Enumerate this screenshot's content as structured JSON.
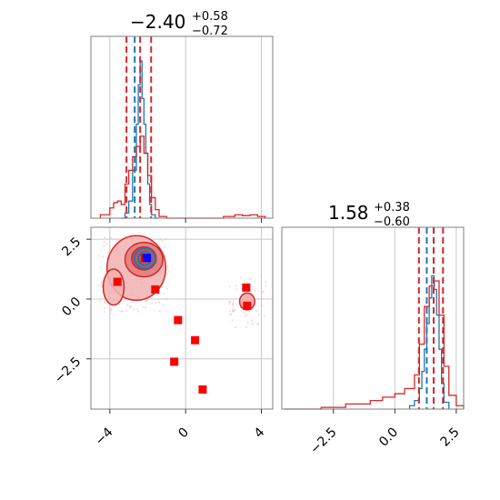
{
  "colors": {
    "blue": "#1f77b4",
    "red": "#d62728",
    "marker": "#ff0000",
    "truth": "#0000ff",
    "grid": "#c8c8c8",
    "frame": "#7f7f7f"
  },
  "chart_data": [
    {
      "type": "histogram",
      "panel": "marginal-x",
      "title": {
        "value": "−2.40",
        "plus": "+0.58",
        "minus": "−0.72"
      },
      "xlim": [
        -5,
        4.6
      ],
      "ylim": [
        0,
        1
      ],
      "quantile_lines": {
        "blue": [
          -2.4
        ],
        "red": [
          -3.12,
          -2.4,
          -1.82
        ]
      },
      "series": [
        {
          "color": "blue",
          "bins": [
            -3.4,
            -3.2,
            -3.0,
            -2.8,
            -2.6,
            -2.5,
            -2.4,
            -2.3,
            -2.2,
            -2.1,
            -2.0,
            -1.9,
            -1.8,
            -1.6,
            -1.4
          ],
          "heights": [
            0.0,
            0.03,
            0.1,
            0.28,
            0.55,
            0.78,
            0.92,
            0.7,
            0.55,
            0.38,
            0.2,
            0.08,
            0.02,
            0.0
          ]
        },
        {
          "color": "red",
          "bins": [
            -4.5,
            -4.0,
            -3.8,
            -3.6,
            -3.4,
            -3.2,
            -3.0,
            -2.8,
            -2.6,
            -2.4,
            -2.2,
            -2.0,
            -1.8,
            -1.6,
            -1.4,
            -1.0,
            0.0,
            2.0,
            2.6,
            3.0,
            3.4,
            3.8,
            4.2
          ],
          "heights": [
            0.02,
            0.06,
            0.09,
            0.1,
            0.08,
            0.2,
            0.28,
            0.36,
            0.42,
            0.48,
            0.38,
            0.25,
            0.12,
            0.05,
            0.01,
            0.0,
            0.0,
            0.01,
            0.02,
            0.015,
            0.02,
            0.01
          ]
        }
      ],
      "xticks": [
        -4,
        0,
        4
      ]
    },
    {
      "type": "histogram",
      "panel": "marginal-y",
      "title": {
        "value": "1.58",
        "plus": "+0.38",
        "minus": "−0.60"
      },
      "xlim": [
        -4.6,
        2.8
      ],
      "ylim": [
        0,
        1
      ],
      "quantile_lines": {
        "blue": [
          1.3
        ],
        "red": [
          0.98,
          1.58,
          1.96
        ]
      },
      "series": [
        {
          "color": "blue",
          "bins": [
            0.6,
            0.8,
            1.0,
            1.1,
            1.2,
            1.3,
            1.4,
            1.5,
            1.6,
            1.7,
            1.8,
            1.9,
            2.0,
            2.2
          ],
          "heights": [
            0.02,
            0.05,
            0.12,
            0.22,
            0.35,
            0.5,
            0.65,
            0.78,
            0.7,
            0.55,
            0.35,
            0.15,
            0.04
          ]
        },
        {
          "color": "red",
          "bins": [
            -4.5,
            -3.0,
            -2.0,
            -1.0,
            -0.5,
            0.0,
            0.4,
            0.8,
            1.0,
            1.2,
            1.4,
            1.6,
            1.8,
            2.0,
            2.2,
            2.5,
            2.8
          ],
          "heights": [
            0.0,
            0.01,
            0.03,
            0.05,
            0.07,
            0.09,
            0.12,
            0.2,
            0.38,
            0.6,
            0.72,
            0.75,
            0.55,
            0.25,
            0.08,
            0.02
          ]
        }
      ],
      "xticks": [
        -2.5,
        0.0,
        2.5
      ],
      "xtick_labels": [
        "−2.5",
        "0.0",
        "2.5"
      ]
    },
    {
      "type": "scatter",
      "panel": "joint",
      "xlim": [
        -5,
        4.6
      ],
      "ylim": [
        -4.6,
        3.0
      ],
      "xticks": [
        -4,
        0,
        4
      ],
      "xtick_labels": [
        "−4",
        "0",
        "4"
      ],
      "yticks": [
        -2.5,
        0.0,
        2.5
      ],
      "ytick_labels": [
        "−2.5",
        "0.0",
        "2.5"
      ],
      "markers": [
        {
          "x": -3.6,
          "y": 0.72
        },
        {
          "x": -1.6,
          "y": 0.4
        },
        {
          "x": -0.4,
          "y": -0.88
        },
        {
          "x": 0.5,
          "y": -1.72
        },
        {
          "x": -0.6,
          "y": -2.62
        },
        {
          "x": 0.9,
          "y": -3.78
        },
        {
          "x": 3.2,
          "y": 0.48
        },
        {
          "x": 3.25,
          "y": -0.28
        },
        {
          "x": -2.15,
          "y": 1.72
        }
      ],
      "truth": {
        "x": -2.05,
        "y": 1.72
      },
      "red_contours": [
        {
          "level": "outer",
          "cx": -2.6,
          "cy": 1.3,
          "rx": 1.55,
          "ry": 1.35
        },
        {
          "level": "mid",
          "cx": -2.2,
          "cy": 1.65,
          "rx": 1.0,
          "ry": 0.72
        },
        {
          "level": "inner",
          "cx": -2.2,
          "cy": 1.7,
          "rx": 0.65,
          "ry": 0.48
        }
      ],
      "blue_contours": [
        {
          "cx": -2.15,
          "cy": 1.7,
          "rx": 0.55,
          "ry": 0.42
        },
        {
          "cx": -2.15,
          "cy": 1.7,
          "rx": 0.35,
          "ry": 0.28
        }
      ],
      "secondary_blob": {
        "cx": 3.25,
        "cy": -0.1,
        "rx": 0.4,
        "ry": 0.35
      }
    }
  ]
}
